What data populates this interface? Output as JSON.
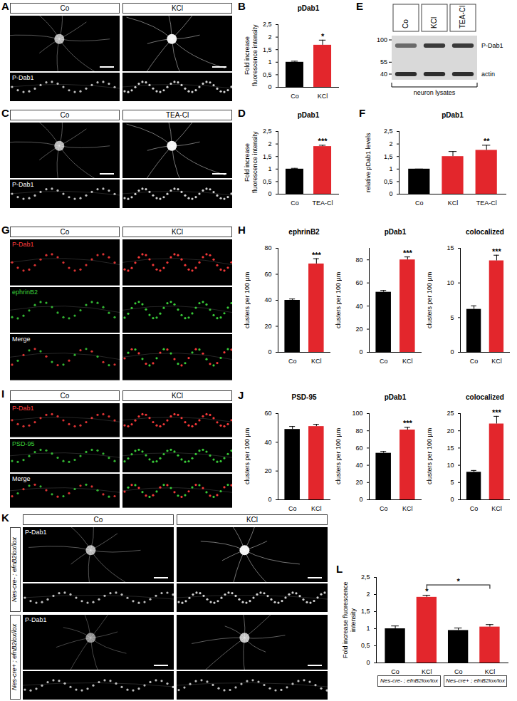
{
  "chart_data": [
    {
      "panel": "B",
      "type": "bar",
      "title": "pDab1",
      "y_label": "Fold increase fluorescence intensity",
      "categories": [
        "Co",
        "KCl"
      ],
      "values": [
        1.0,
        1.68
      ],
      "errors": [
        0.04,
        0.2
      ],
      "significance": [
        null,
        "*"
      ],
      "colors": [
        "#000000",
        "#e3262c"
      ],
      "ylim": [
        0,
        2.5
      ],
      "yticks": [
        0,
        {
          "value": 0.5,
          "label": "0,5"
        },
        1,
        {
          "value": 1.5,
          "label": "1,5"
        },
        2,
        {
          "value": 2.5,
          "label": "2,5"
        }
      ]
    },
    {
      "panel": "D",
      "type": "bar",
      "title": "pDab1",
      "y_label": "Fold increase fluorescence intensity",
      "categories": [
        "Co",
        "TEA-Cl"
      ],
      "values": [
        1.0,
        1.9
      ],
      "errors": [
        0.03,
        0.05
      ],
      "significance": [
        null,
        "***"
      ],
      "colors": [
        "#000000",
        "#e3262c"
      ],
      "ylim": [
        0,
        2.5
      ],
      "yticks": [
        0,
        {
          "value": 0.5,
          "label": "0,5"
        },
        1,
        {
          "value": 1.5,
          "label": "1,5"
        },
        2,
        {
          "value": 2.5,
          "label": "2,5"
        }
      ]
    },
    {
      "panel": "F",
      "type": "bar",
      "title": "pDab1",
      "y_label": "relative pDab1 levels",
      "categories": [
        "Co",
        "KCl",
        "TEA-Cl"
      ],
      "values": [
        1.0,
        1.5,
        1.75
      ],
      "errors": [
        0,
        0.2,
        0.2
      ],
      "significance": [
        null,
        null,
        "**"
      ],
      "colors": [
        "#000000",
        "#e3262c",
        "#e3262c"
      ],
      "ylim": [
        0,
        2.5
      ],
      "yticks": [
        0,
        {
          "value": 0.5,
          "label": "0,5"
        },
        1,
        {
          "value": 1.5,
          "label": "1,5"
        },
        2,
        {
          "value": 2.5,
          "label": "2,5"
        }
      ]
    },
    {
      "panel": "H",
      "type": "bar",
      "title": "ephrinB2",
      "y_label": "clusters per 100 µm",
      "categories": [
        "Co",
        "KCl"
      ],
      "values": [
        40,
        68
      ],
      "errors": [
        1,
        4
      ],
      "significance": [
        null,
        "***"
      ],
      "colors": [
        "#000000",
        "#e3262c"
      ],
      "ylim": [
        0,
        80
      ],
      "yticks": [
        0,
        20,
        40,
        60,
        80
      ]
    },
    {
      "type": "bar",
      "title": "pDab1",
      "y_label": "clusters per 100 µm",
      "categories": [
        "Co",
        "KCl"
      ],
      "values": [
        52,
        80
      ],
      "errors": [
        1.5,
        2.5
      ],
      "significance": [
        null,
        "***"
      ],
      "colors": [
        "#000000",
        "#e3262c"
      ],
      "ylim": [
        0,
        90
      ],
      "yticks": [
        0,
        20,
        40,
        60,
        80
      ]
    },
    {
      "type": "bar",
      "title": "colocalized",
      "y_label": "clusters per 100 µm",
      "categories": [
        "Co",
        "KCl"
      ],
      "values": [
        6.2,
        13.2
      ],
      "errors": [
        0.5,
        0.8
      ],
      "significance": [
        null,
        "***"
      ],
      "colors": [
        "#000000",
        "#e3262c"
      ],
      "ylim": [
        0,
        15
      ],
      "yticks": [
        0,
        5,
        10,
        15
      ]
    },
    {
      "panel": "J",
      "type": "bar",
      "title": "PSD-95",
      "y_label": "clusters per 100 µm",
      "categories": [
        "Co",
        "KCl"
      ],
      "values": [
        49,
        51
      ],
      "errors": [
        2,
        1.5
      ],
      "significance": [
        null,
        null
      ],
      "colors": [
        "#000000",
        "#e3262c"
      ],
      "ylim": [
        0,
        60
      ],
      "yticks": [
        0,
        20,
        40,
        60
      ]
    },
    {
      "type": "bar",
      "title": "pDab1",
      "y_label": "clusters per 100 µm",
      "categories": [
        "Co",
        "KCl"
      ],
      "values": [
        54,
        81
      ],
      "errors": [
        2,
        3
      ],
      "significance": [
        null,
        "***"
      ],
      "colors": [
        "#000000",
        "#e3262c"
      ],
      "ylim": [
        0,
        100
      ],
      "yticks": [
        0,
        20,
        40,
        60,
        80,
        100
      ]
    },
    {
      "type": "bar",
      "title": "colocalized",
      "y_label": "clusters per 100 µm",
      "categories": [
        "Co",
        "KCl"
      ],
      "values": [
        8,
        22
      ],
      "errors": [
        0.5,
        2.2
      ],
      "significance": [
        null,
        "***"
      ],
      "colors": [
        "#000000",
        "#e3262c"
      ],
      "ylim": [
        0,
        25
      ],
      "yticks": [
        0,
        5,
        10,
        15,
        20,
        25
      ]
    },
    {
      "panel": "L",
      "type": "bar",
      "y_label": "Fold increase fluorescence intensity",
      "categories": [
        "Co",
        "KCl",
        "Co",
        "KCl"
      ],
      "values": [
        1.0,
        1.92,
        0.95,
        1.05
      ],
      "errors": [
        0.08,
        0.06,
        0.07,
        0.07
      ],
      "significance": [
        null,
        "*",
        null,
        null
      ],
      "colors": [
        "#000000",
        "#e3262c",
        "#000000",
        "#e3262c"
      ],
      "groups": [
        "Nes-cre- ; efnB2lox/lox",
        "Nes-cre+ ; efnB2lox/lox"
      ],
      "comparisons": [
        {
          "from": 1,
          "to": 3,
          "label": "*"
        }
      ],
      "ylim": [
        0,
        2.5
      ],
      "yticks": [
        0,
        {
          "value": 0.5,
          "label": "0,5"
        },
        1,
        {
          "value": 1.5,
          "label": "1,5"
        },
        2,
        {
          "value": 2.5,
          "label": "2,5"
        }
      ]
    }
  ],
  "image_panels": [
    {
      "panel": "A",
      "columns": [
        "Co",
        "KCl"
      ],
      "stain": "P-Dab1"
    },
    {
      "panel": "C",
      "columns": [
        "Co",
        "TEA-Cl"
      ],
      "stain": "P-Dab1"
    },
    {
      "panel": "G",
      "columns": [
        "Co",
        "KCl"
      ],
      "channels": [
        {
          "name": "P-Dab1",
          "color": "#ff3b3b"
        },
        {
          "name": "ephrinB2",
          "color": "#3bd43b"
        },
        {
          "name": "Merge"
        }
      ]
    },
    {
      "panel": "I",
      "columns": [
        "Co",
        "KCl"
      ],
      "channels": [
        {
          "name": "P-Dab1",
          "color": "#ff3b3b"
        },
        {
          "name": "PSD-95",
          "color": "#3bd43b"
        },
        {
          "name": "Merge"
        }
      ]
    },
    {
      "panel": "K",
      "columns": [
        "Co",
        "KCl"
      ],
      "rows": [
        "Nes-cre- ; efnB2lox/lox",
        "Nes-cre+ ; efnB2lox/lox"
      ],
      "stain": "P-Dab1"
    }
  ],
  "blot": {
    "panel": "E",
    "lanes": [
      "Co",
      "KCl",
      "TEA-Cl"
    ],
    "markers": [
      100,
      55,
      40
    ],
    "bands": [
      "P-Dab1",
      "actin"
    ],
    "caption": "neuron lysates"
  }
}
